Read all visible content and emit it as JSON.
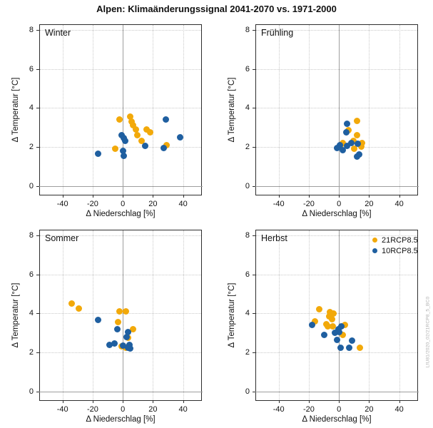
{
  "title": "Alpen: Klimaänderungssignal 2041-2070 vs. 1971-2000",
  "watermark": "LfU81/2020_02/21RCP8_5_BC0",
  "colors": {
    "orange": "#F2A90A",
    "blue": "#1F5FA0",
    "zero_line": "#9E9E9E",
    "grid": "#C9C9C9",
    "box": "#2E2E2E"
  },
  "legend": [
    {
      "label": "21RCP8.5",
      "color_key": "orange"
    },
    {
      "label": "10RCP8.5",
      "color_key": "blue"
    }
  ],
  "axes": {
    "x_label": "Δ Niederschlag [%]",
    "y_label": "Δ Temperatur [°C]",
    "x_ticks": [
      -40,
      -20,
      0,
      20,
      40
    ],
    "y_ticks": [
      0,
      2,
      4,
      6,
      8
    ],
    "xlim": [
      -55,
      52
    ],
    "ylim": [
      -0.45,
      8.25
    ],
    "grid": true,
    "zero_lines": true,
    "legend_position": "top-right of Herbst panel"
  },
  "chart_data": [
    {
      "type": "scatter",
      "title": "Winter",
      "series": [
        {
          "name": "21RCP8.5",
          "color_key": "orange",
          "points": [
            [
              -5,
              1.9
            ],
            [
              -2,
              3.4
            ],
            [
              5,
              3.55
            ],
            [
              6,
              3.3
            ],
            [
              7,
              3.1
            ],
            [
              8.5,
              2.9
            ],
            [
              9.5,
              2.6
            ],
            [
              12.5,
              2.3
            ],
            [
              16,
              2.9
            ],
            [
              18,
              2.75
            ],
            [
              29,
              2.1
            ]
          ]
        },
        {
          "name": "10RCP8.5",
          "color_key": "blue",
          "points": [
            [
              -16.5,
              1.65
            ],
            [
              -1,
              2.6
            ],
            [
              0.5,
              2.45
            ],
            [
              1.5,
              2.3
            ],
            [
              0,
              1.8
            ],
            [
              0.5,
              1.55
            ],
            [
              15,
              2.05
            ],
            [
              27,
              1.95
            ],
            [
              28.5,
              3.4
            ],
            [
              38,
              2.5
            ]
          ]
        }
      ]
    },
    {
      "type": "scatter",
      "title": "Frühling",
      "series": [
        {
          "name": "21RCP8.5",
          "color_key": "orange",
          "points": [
            [
              12,
              3.35
            ],
            [
              6.5,
              2.85
            ],
            [
              12,
              2.6
            ],
            [
              9.5,
              2.3
            ],
            [
              2.5,
              2.2
            ],
            [
              1,
              2.1
            ],
            [
              15.5,
              2.2
            ],
            [
              15,
              2.0
            ],
            [
              10,
              1.9
            ]
          ]
        },
        {
          "name": "10RCP8.5",
          "color_key": "blue",
          "points": [
            [
              5.5,
              3.2
            ],
            [
              5,
              2.75
            ],
            [
              0.5,
              2.1
            ],
            [
              -1.5,
              1.95
            ],
            [
              5.5,
              2.05
            ],
            [
              8,
              2.2
            ],
            [
              12.5,
              2.15
            ],
            [
              2.5,
              1.85
            ],
            [
              13.5,
              1.6
            ],
            [
              12,
              1.5
            ]
          ]
        }
      ]
    },
    {
      "type": "scatter",
      "title": "Sommer",
      "series": [
        {
          "name": "21RCP8.5",
          "color_key": "orange",
          "points": [
            [
              -34,
              4.5
            ],
            [
              -29,
              4.25
            ],
            [
              -2,
              4.1
            ],
            [
              2,
              4.1
            ],
            [
              -3,
              3.55
            ],
            [
              7,
              3.2
            ],
            [
              3.5,
              2.75
            ],
            [
              -1,
              2.3
            ],
            [
              2,
              2.25
            ]
          ]
        },
        {
          "name": "10RCP8.5",
          "color_key": "blue",
          "points": [
            [
              -16.5,
              3.65
            ],
            [
              -3.5,
              3.2
            ],
            [
              3.5,
              3.05
            ],
            [
              2.5,
              2.8
            ],
            [
              -9,
              2.4
            ],
            [
              -5.5,
              2.45
            ],
            [
              4.5,
              2.4
            ],
            [
              5,
              2.2
            ],
            [
              3.5,
              2.25
            ],
            [
              0,
              2.35
            ]
          ]
        }
      ]
    },
    {
      "type": "scatter",
      "title": "Herbst",
      "series": [
        {
          "name": "21RCP8.5",
          "color_key": "orange",
          "points": [
            [
              -13,
              4.2
            ],
            [
              -6,
              4.05
            ],
            [
              -3.5,
              4.0
            ],
            [
              -6.5,
              3.85
            ],
            [
              -4.5,
              3.7
            ],
            [
              -16,
              3.6
            ],
            [
              -8.5,
              3.45
            ],
            [
              -7.5,
              3.35
            ],
            [
              -4,
              3.35
            ],
            [
              4,
              3.4
            ],
            [
              2.5,
              2.9
            ],
            [
              14,
              2.25
            ]
          ]
        },
        {
          "name": "10RCP8.5",
          "color_key": "blue",
          "points": [
            [
              -18,
              3.4
            ],
            [
              1.5,
              3.35
            ],
            [
              -0.5,
              3.2
            ],
            [
              0,
              3.05
            ],
            [
              -2.5,
              3.0
            ],
            [
              -10,
              2.9
            ],
            [
              -1.5,
              2.65
            ],
            [
              8.5,
              2.6
            ],
            [
              1,
              2.25
            ],
            [
              7,
              2.25
            ]
          ]
        }
      ]
    }
  ]
}
